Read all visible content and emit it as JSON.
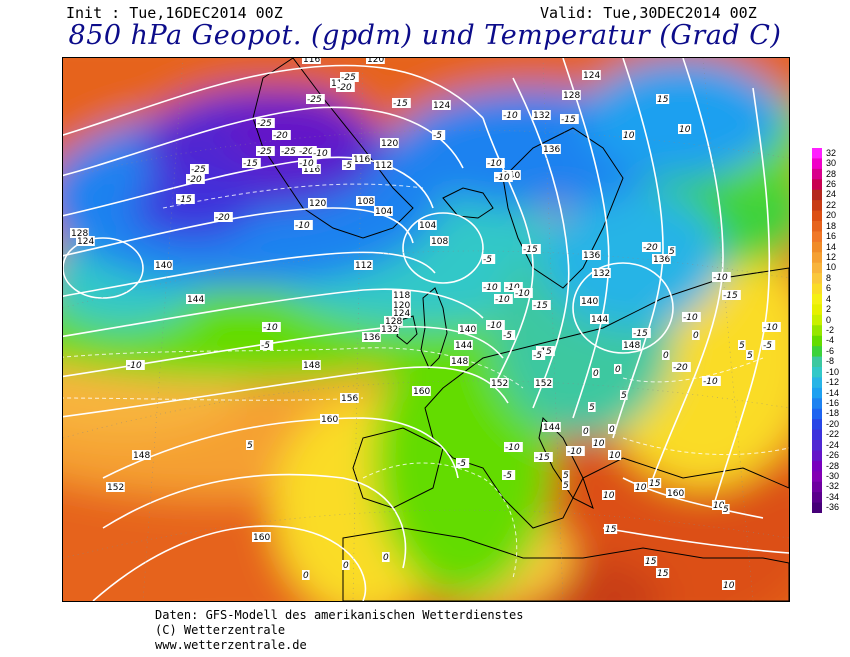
{
  "header": {
    "init": "Init : Tue,16DEC2014 00Z",
    "valid": "Valid: Tue,30DEC2014 00Z",
    "title": "850 hPa Geopot. (gpdm) und Temperatur (Grad C)"
  },
  "colors": {
    "title": "#0c0c8a",
    "contour_line": "#ffffff",
    "coastline": "#000000"
  },
  "legend": {
    "labels": [
      "32",
      "30",
      "28",
      "26",
      "24",
      "22",
      "20",
      "18",
      "16",
      "14",
      "12",
      "10",
      "8",
      "6",
      "4",
      "2",
      "0",
      "-2",
      "-4",
      "-6",
      "-8",
      "-10",
      "-12",
      "-14",
      "-16",
      "-18",
      "-20",
      "-22",
      "-24",
      "-26",
      "-28",
      "-30",
      "-32",
      "-34",
      "-36"
    ],
    "colors": [
      "#ff20ff",
      "#f000c8",
      "#d8008c",
      "#c80050",
      "#b4281e",
      "#c83c14",
      "#dc5014",
      "#e6641e",
      "#f07828",
      "#f08c28",
      "#f5a032",
      "#f8b43c",
      "#fac83c",
      "#fadc28",
      "#f5f014",
      "#e6f000",
      "#c8f000",
      "#96e600",
      "#64dc00",
      "#3cd23c",
      "#3cc8a0",
      "#32c8c8",
      "#28b4e6",
      "#1ea0f0",
      "#1e82f0",
      "#1e64f0",
      "#2846e6",
      "#3c32dc",
      "#5028d2",
      "#6414c8",
      "#7800be",
      "#8200b4",
      "#6e00a0",
      "#5a008c",
      "#460078"
    ]
  },
  "map": {
    "geopotential_labels": [
      "116",
      "120",
      "112",
      "124",
      "124",
      "128",
      "132",
      "136",
      "140",
      "136",
      "120",
      "112",
      "116",
      "116",
      "120",
      "108",
      "104",
      "104",
      "108",
      "112",
      "136",
      "128",
      "124",
      "140",
      "144",
      "118",
      "120",
      "124",
      "128",
      "132",
      "136",
      "140",
      "144",
      "148",
      "148",
      "152",
      "156",
      "160",
      "148",
      "152",
      "160",
      "132",
      "140",
      "144",
      "148",
      "144",
      "152",
      "160",
      "160"
    ],
    "temperature_labels": [
      "-25",
      "-20",
      "-25",
      "-15",
      "-25",
      "-20",
      "-25",
      "-25",
      "-20",
      "-15",
      "-10",
      "-10",
      "-5",
      "-25",
      "-20",
      "-20",
      "-15",
      "-10",
      "-5",
      "-10",
      "-5",
      "-10",
      "-10",
      "-15",
      "-10",
      "-15",
      "-10",
      "-15",
      "-10",
      "-10",
      "-5",
      "-10",
      "-10",
      "-5",
      "-5",
      "0",
      "0",
      "5",
      "5",
      "10",
      "5",
      "5",
      "0",
      "0",
      "-5",
      "-5",
      "-10",
      "-15",
      "-10",
      "10",
      "10",
      "15",
      "15",
      "15",
      "15",
      "10",
      "10",
      "5",
      "5",
      "0",
      "0",
      "5",
      "10",
      "15",
      "10",
      "5",
      "0",
      "0",
      "0",
      "5",
      "-10",
      "-15",
      "-20",
      "-10",
      "-15",
      "-10",
      "-15",
      "-20",
      "-10",
      "-10",
      "-5",
      "10"
    ]
  },
  "credits": {
    "line1": "Daten: GFS-Modell des amerikanischen Wetterdienstes",
    "line2": "(C) Wetterzentrale",
    "line3": "www.wetterzentrale.de"
  }
}
